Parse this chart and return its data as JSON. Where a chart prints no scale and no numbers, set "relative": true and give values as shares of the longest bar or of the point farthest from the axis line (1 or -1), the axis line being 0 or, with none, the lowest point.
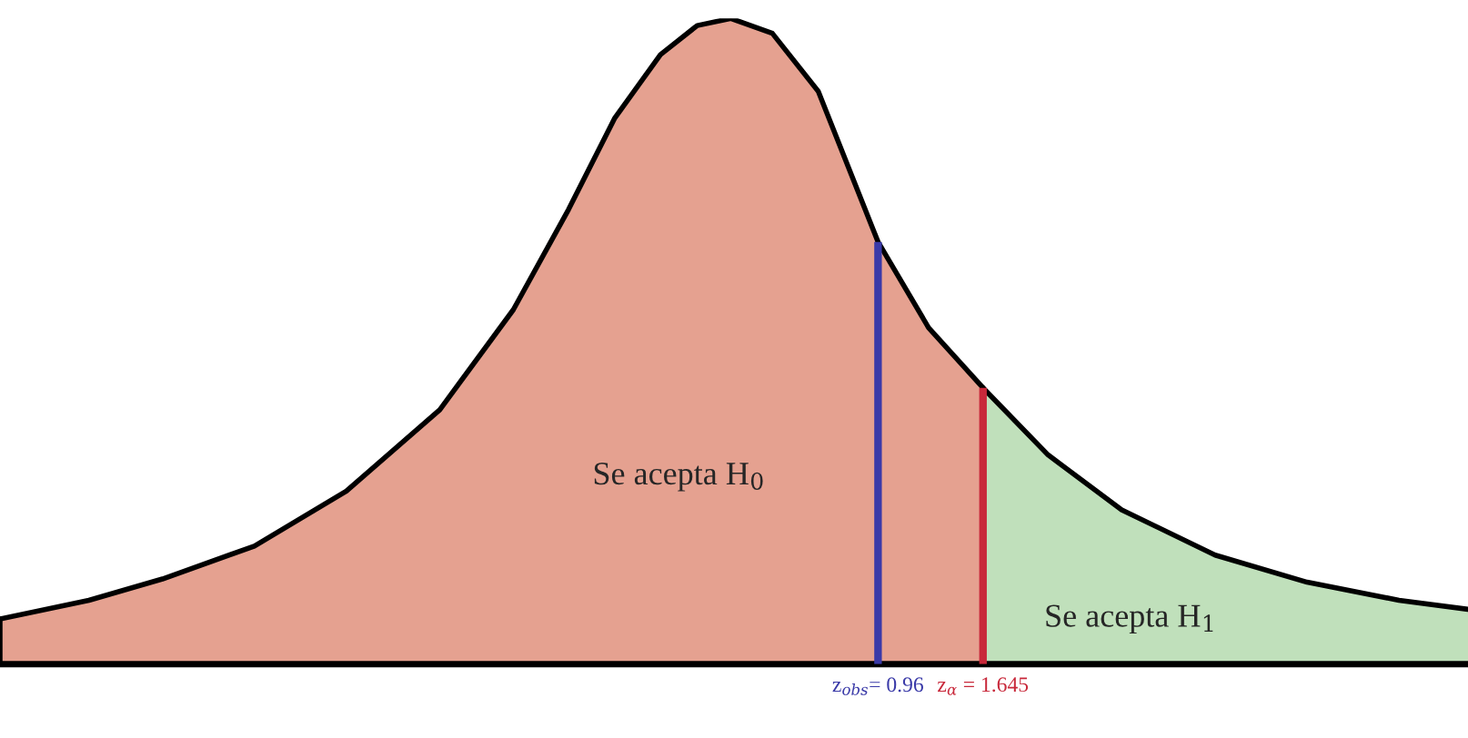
{
  "chart_data": {
    "type": "area",
    "relative": true,
    "tick_labels": "x",
    "xlim": [
      -4.77,
      4.81
    ],
    "xticks": [
      {
        "value": 0.96,
        "label": "z$_{obs}$= 0.96"
      },
      {
        "value": 1.645,
        "label": "z$_{α}$ = 1.645"
      }
    ],
    "series": [
      {
        "color": "#e5a190",
        "x": [
          -4.77,
          -4.19,
          -3.71,
          -3.11,
          -2.51,
          -1.9,
          -1.42,
          -1.06,
          -0.76,
          -0.46,
          -0.22,
          0,
          0.27,
          0.57,
          0.96,
          1.29,
          1.645
        ],
        "values": [
          0.07,
          0.099,
          0.132,
          0.183,
          0.268,
          0.394,
          0.549,
          0.704,
          0.845,
          0.944,
          0.989,
          1,
          0.977,
          0.887,
          0.654,
          0.521,
          0.428
        ]
      },
      {
        "color": "#c0e0bb",
        "x": [
          1.645,
          2.07,
          2.55,
          3.16,
          3.76,
          4.36,
          4.81
        ],
        "values": [
          0.428,
          0.324,
          0.239,
          0.169,
          0.127,
          0.099,
          0.085
        ]
      }
    ],
    "ref_lines": [
      {
        "axis": "x",
        "value": 0.96,
        "color": "#3a3aa8"
      },
      {
        "axis": "x",
        "value": 1.645,
        "color": "#c8283a"
      }
    ],
    "annotations": [
      "Se acepta H$_{0}$",
      "Se acepta H$_{1}$"
    ]
  }
}
